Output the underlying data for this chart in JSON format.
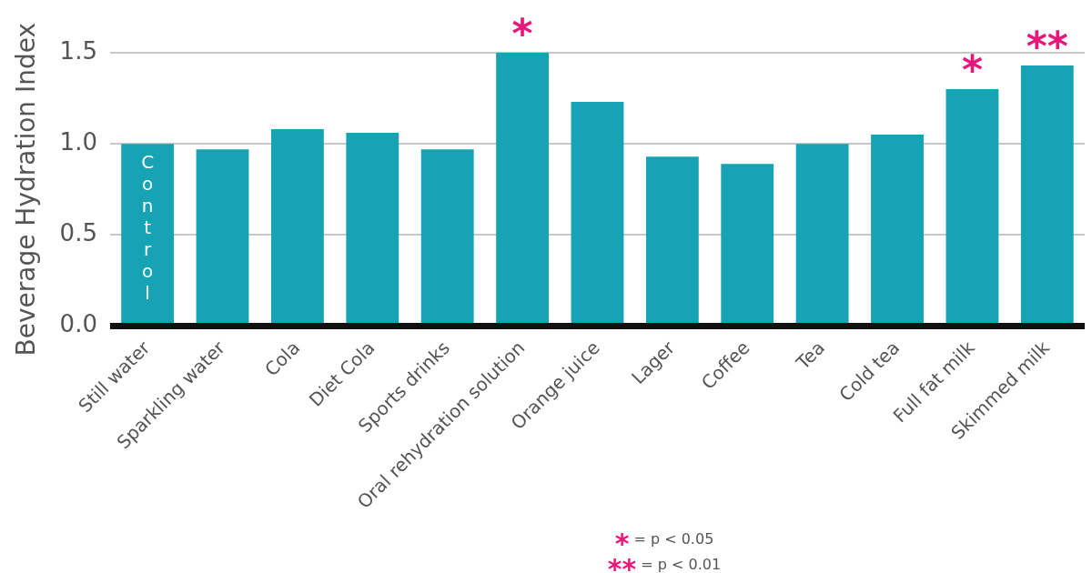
{
  "chart_data": {
    "type": "bar",
    "ylabel": "Beverage Hydration Index",
    "categories": [
      "Still water",
      "Sparkling water",
      "Cola",
      "Diet Cola",
      "Sports drinks",
      "Oral rehydration solution",
      "Orange juice",
      "Lager",
      "Coffee",
      "Tea",
      "Cold tea",
      "Full fat milk",
      "Skimmed milk"
    ],
    "values": [
      1.0,
      0.97,
      1.08,
      1.06,
      0.97,
      1.5,
      1.23,
      0.93,
      0.89,
      1.0,
      1.05,
      1.3,
      1.43
    ],
    "color": "#16a4b4",
    "ylim": [
      0,
      1.5
    ],
    "yticks": [
      {
        "value": 0,
        "label": "0.0"
      },
      {
        "value": 0.5,
        "label": "0.5"
      },
      {
        "value": 1,
        "label": "1.0"
      },
      {
        "value": 1.5,
        "label": "1.5"
      }
    ],
    "grid": "y",
    "legend": false,
    "annotations": [
      {
        "text": "Control",
        "x": "Still water",
        "y": 1.0
      },
      {
        "text": "*",
        "x": "Oral rehydration solution",
        "y": 1.5
      },
      {
        "text": "*",
        "x": "Full fat milk",
        "y": 1.3
      },
      {
        "text": "**",
        "x": "Skimmed milk",
        "y": 1.43
      },
      "* = p < 0.05",
      "** = p < 0.01"
    ]
  }
}
